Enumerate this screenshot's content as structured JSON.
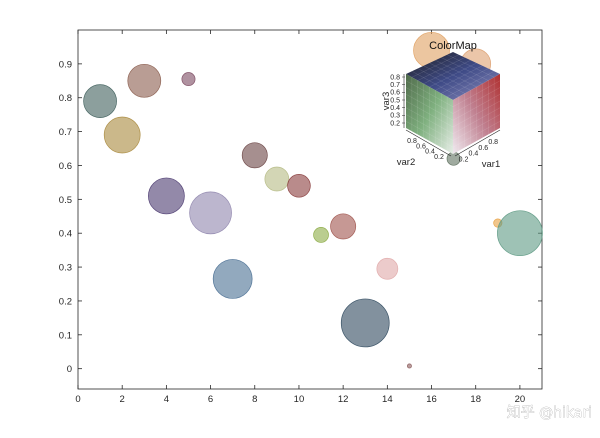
{
  "chart_data": {
    "type": "scatter",
    "title": "",
    "xlabel": "",
    "ylabel": "",
    "xlim": [
      0,
      21
    ],
    "ylim": [
      -0.06,
      1.0
    ],
    "xticks": [
      0,
      2,
      4,
      6,
      8,
      10,
      12,
      14,
      16,
      18,
      20
    ],
    "yticks": [
      0,
      0.1,
      0.2,
      0.3,
      0.4,
      0.5,
      0.6,
      0.7,
      0.8,
      0.9
    ],
    "grid": false,
    "marker_alpha": 0.6,
    "points": [
      {
        "x": 1,
        "y": 0.79,
        "size": 0.55,
        "color": "#3f5f5c"
      },
      {
        "x": 2,
        "y": 0.69,
        "size": 0.6,
        "color": "#a9883c"
      },
      {
        "x": 3,
        "y": 0.85,
        "size": 0.55,
        "color": "#8a5c4c"
      },
      {
        "x": 5,
        "y": 0.855,
        "size": 0.22,
        "color": "#7c4a60"
      },
      {
        "x": 4,
        "y": 0.51,
        "size": 0.6,
        "color": "#4b3a70"
      },
      {
        "x": 6,
        "y": 0.46,
        "size": 0.7,
        "color": "#8f85ad"
      },
      {
        "x": 7,
        "y": 0.265,
        "size": 0.65,
        "color": "#4a6f93"
      },
      {
        "x": 8,
        "y": 0.63,
        "size": 0.42,
        "color": "#6b4545"
      },
      {
        "x": 9,
        "y": 0.56,
        "size": 0.4,
        "color": "#b5ba84"
      },
      {
        "x": 10,
        "y": 0.54,
        "size": 0.38,
        "color": "#8a3d3d"
      },
      {
        "x": 11,
        "y": 0.395,
        "size": 0.25,
        "color": "#8cab45"
      },
      {
        "x": 12,
        "y": 0.42,
        "size": 0.42,
        "color": "#a0544c"
      },
      {
        "x": 13,
        "y": 0.135,
        "size": 0.8,
        "color": "#2e485d"
      },
      {
        "x": 14,
        "y": 0.295,
        "size": 0.35,
        "color": "#e0a8a8"
      },
      {
        "x": 15,
        "y": 0.008,
        "size": 0.07,
        "color": "#8a5a5a"
      },
      {
        "x": 16,
        "y": 0.94,
        "size": 0.6,
        "color": "#e0a060"
      },
      {
        "x": 17,
        "y": 0.62,
        "size": 0.22,
        "color": "#5f715f"
      },
      {
        "x": 18,
        "y": 0.9,
        "size": 0.5,
        "color": "#dda070"
      },
      {
        "x": 19,
        "y": 0.43,
        "size": 0.14,
        "color": "#e8a040"
      },
      {
        "x": 20,
        "y": 0.4,
        "size": 0.75,
        "color": "#5e9a84"
      }
    ]
  },
  "colormap_legend": {
    "title": "ColorMap",
    "axis_labels": {
      "var1": "var1",
      "var2": "var2",
      "var3": "var3"
    },
    "var1_ticks": [
      "0.2",
      "0.4",
      "0.6",
      "0.8"
    ],
    "var2_ticks": [
      "0.2",
      "0.4",
      "0.6",
      "0.8"
    ],
    "var3_ticks": [
      "0.2",
      "0.3",
      "0.4",
      "0.5",
      "0.6",
      "0.7",
      "0.8"
    ],
    "corner_colors": {
      "top": "#2a2a2a",
      "front": "#f5f5f7",
      "left_face": "#4a8a4a",
      "right_face": "#a83a3a",
      "top_face_mid": "#40508a"
    }
  },
  "watermark": {
    "text": "知乎 @hikari"
  }
}
